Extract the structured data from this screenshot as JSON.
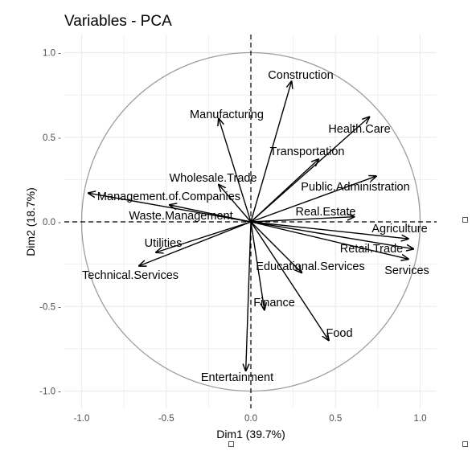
{
  "chart_data": {
    "type": "scatter",
    "subtype": "pca-variable-correlation-circle",
    "title": "Variables - PCA",
    "xlabel": "Dim1 (39.7%)",
    "ylabel": "Dim2 (18.7%)",
    "xlim": [
      -1.0,
      1.0
    ],
    "ylim": [
      -1.0,
      1.0
    ],
    "x_ticks": [
      -1.0,
      -0.5,
      0.0,
      0.5,
      1.0
    ],
    "x_tick_labels": [
      "-1.0",
      "-0.5",
      "0.0",
      "0.5",
      "1.0"
    ],
    "y_ticks": [
      1.0,
      0.5,
      0.0,
      -0.5,
      -1.0
    ],
    "y_tick_labels": [
      "1.0 -",
      "0.5 -",
      "0.0 -",
      "-0.5 -",
      "-1.0 -"
    ],
    "grid": true,
    "unit_circle": true,
    "colors": {
      "arrow": "#000000",
      "circle": "#9e9e9e",
      "grid": "#ebebeb"
    },
    "variables": [
      {
        "name": "Construction",
        "x": 0.24,
        "y": 0.83
      },
      {
        "name": "Manufacturing",
        "x": -0.19,
        "y": 0.61
      },
      {
        "name": "Health.Care",
        "x": 0.7,
        "y": 0.62
      },
      {
        "name": "Transportation",
        "x": 0.4,
        "y": 0.37
      },
      {
        "name": "Wholesale.Trade",
        "x": -0.19,
        "y": 0.22
      },
      {
        "name": "Public.Administration",
        "x": 0.74,
        "y": 0.27
      },
      {
        "name": "Management.of.Companies",
        "x": -0.96,
        "y": 0.17
      },
      {
        "name": "Waste.Management",
        "x": -0.48,
        "y": 0.1
      },
      {
        "name": "Real.Estate",
        "x": 0.61,
        "y": 0.03
      },
      {
        "name": "Agriculture",
        "x": 0.93,
        "y": -0.1
      },
      {
        "name": "Retail.Trade",
        "x": 0.96,
        "y": -0.16
      },
      {
        "name": "Services",
        "x": 0.93,
        "y": -0.22
      },
      {
        "name": "Utilities",
        "x": -0.56,
        "y": -0.18
      },
      {
        "name": "Technical.Services",
        "x": -0.66,
        "y": -0.26
      },
      {
        "name": "Educational.Services",
        "x": 0.3,
        "y": -0.3
      },
      {
        "name": "Finance",
        "x": 0.08,
        "y": -0.52
      },
      {
        "name": "Food",
        "x": 0.46,
        "y": -0.7
      },
      {
        "name": "Entertainment",
        "x": -0.03,
        "y": -0.88
      }
    ]
  }
}
